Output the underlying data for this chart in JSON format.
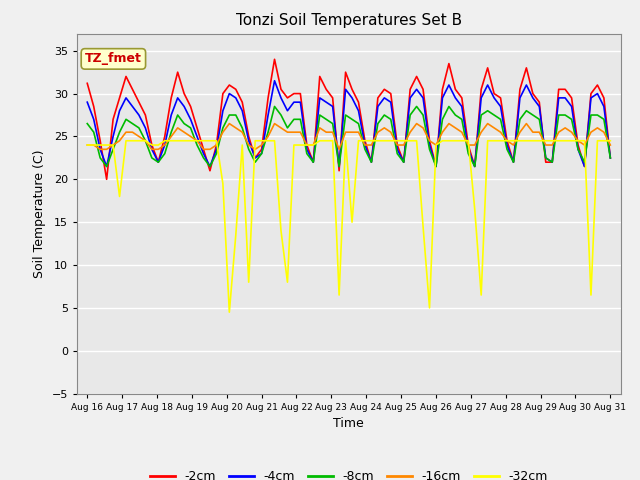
{
  "title": "Tonzi Soil Temperatures Set B",
  "xlabel": "Time",
  "ylabel": "Soil Temperature (C)",
  "ylim": [
    -5,
    37
  ],
  "annotation_text": "TZ_fmet",
  "annotation_bg": "#ffffcc",
  "annotation_border": "#999933",
  "annotation_color": "#cc0000",
  "grid_color": "#ffffff",
  "bg_color": "#e8e8e8",
  "fig_bg_color": "#f0f0f0",
  "legend_labels": [
    "-2cm",
    "-4cm",
    "-8cm",
    "-16cm",
    "-32cm"
  ],
  "legend_colors": [
    "#ff0000",
    "#0000ff",
    "#00bb00",
    "#ff8800",
    "#ffff00"
  ],
  "line_width": 1.2,
  "tick_labels": [
    "Aug 16",
    "Aug 17",
    "Aug 18",
    "Aug 19",
    "Aug 20",
    "Aug 21",
    "Aug 22",
    "Aug 23",
    "Aug 24",
    "Aug 25",
    "Aug 26",
    "Aug 27",
    "Aug 28",
    "Aug 29",
    "Aug 30",
    "Aug 31"
  ],
  "series": {
    "d2cm": [
      31.2,
      28.5,
      24.5,
      20.0,
      27.0,
      29.5,
      32.0,
      30.5,
      29.0,
      27.5,
      24.0,
      22.0,
      25.0,
      29.5,
      32.5,
      30.0,
      28.5,
      26.0,
      23.5,
      21.0,
      24.0,
      30.0,
      31.0,
      30.5,
      29.0,
      25.0,
      22.5,
      23.5,
      29.5,
      34.0,
      30.5,
      29.5,
      30.0,
      30.0,
      24.0,
      22.0,
      32.0,
      30.5,
      29.5,
      21.0,
      32.5,
      30.5,
      29.0,
      24.5,
      22.0,
      29.5,
      30.5,
      30.0,
      24.0,
      22.0,
      30.5,
      32.0,
      30.5,
      24.5,
      21.5,
      30.5,
      33.5,
      30.5,
      29.5,
      24.0,
      21.5,
      30.5,
      33.0,
      30.0,
      29.5,
      24.5,
      22.0,
      30.5,
      33.0,
      30.0,
      29.0,
      22.0,
      22.0,
      30.5,
      30.5,
      29.5,
      24.0,
      21.5,
      30.0,
      31.0,
      29.5,
      22.5
    ],
    "d4cm": [
      29.0,
      27.0,
      23.5,
      21.5,
      25.0,
      28.0,
      29.5,
      28.5,
      27.5,
      26.0,
      23.5,
      22.0,
      24.0,
      27.5,
      29.5,
      28.5,
      27.0,
      25.0,
      23.0,
      21.5,
      23.5,
      28.0,
      30.0,
      29.5,
      28.0,
      24.5,
      22.5,
      23.0,
      27.5,
      31.5,
      29.5,
      28.0,
      29.0,
      29.0,
      23.5,
      22.0,
      29.5,
      29.0,
      28.5,
      21.5,
      30.5,
      29.5,
      28.0,
      24.0,
      22.0,
      28.5,
      29.5,
      29.0,
      23.5,
      22.0,
      29.5,
      30.5,
      29.5,
      24.0,
      21.5,
      29.5,
      31.0,
      29.5,
      28.5,
      23.5,
      21.5,
      29.5,
      31.0,
      29.5,
      28.5,
      24.0,
      22.0,
      29.5,
      31.0,
      29.5,
      28.5,
      22.5,
      22.0,
      29.5,
      29.5,
      28.5,
      23.5,
      21.5,
      29.5,
      30.0,
      28.5,
      22.5
    ],
    "d8cm": [
      26.5,
      25.5,
      22.5,
      21.5,
      23.5,
      25.5,
      27.0,
      26.5,
      26.0,
      24.5,
      22.5,
      22.0,
      23.0,
      25.5,
      27.5,
      26.5,
      26.0,
      24.0,
      22.5,
      21.5,
      23.0,
      26.0,
      27.5,
      27.5,
      26.0,
      23.5,
      22.0,
      23.0,
      25.5,
      28.5,
      27.5,
      26.0,
      27.0,
      27.0,
      23.0,
      22.0,
      27.5,
      27.0,
      26.5,
      21.5,
      27.5,
      27.0,
      26.5,
      23.5,
      22.0,
      26.5,
      27.5,
      27.0,
      23.0,
      22.0,
      27.5,
      28.5,
      27.5,
      23.5,
      21.5,
      27.0,
      28.5,
      27.5,
      27.0,
      23.0,
      21.5,
      27.5,
      28.0,
      27.5,
      27.0,
      23.5,
      22.0,
      27.0,
      28.0,
      27.5,
      27.0,
      22.5,
      22.0,
      27.5,
      27.5,
      27.0,
      23.5,
      22.0,
      27.5,
      27.5,
      27.0,
      22.5
    ],
    "d16cm": [
      24.0,
      24.0,
      23.5,
      23.5,
      24.0,
      24.5,
      25.5,
      25.5,
      25.0,
      24.5,
      23.5,
      23.5,
      24.0,
      25.0,
      26.0,
      25.5,
      25.0,
      24.5,
      23.5,
      23.5,
      24.0,
      25.5,
      26.5,
      26.0,
      25.5,
      24.0,
      23.5,
      24.0,
      25.0,
      26.5,
      26.0,
      25.5,
      25.5,
      25.5,
      24.0,
      24.0,
      26.0,
      25.5,
      25.5,
      23.5,
      25.5,
      25.5,
      25.5,
      24.0,
      24.0,
      25.5,
      26.0,
      25.5,
      24.0,
      24.0,
      25.5,
      26.5,
      26.0,
      24.5,
      24.0,
      25.5,
      26.5,
      26.0,
      25.5,
      24.0,
      24.0,
      25.5,
      26.5,
      26.0,
      25.5,
      24.5,
      24.0,
      25.5,
      26.5,
      25.5,
      25.5,
      24.0,
      24.0,
      25.5,
      26.0,
      25.5,
      24.5,
      24.0,
      25.5,
      26.0,
      25.5,
      24.0
    ],
    "d32cm": [
      24.0,
      24.0,
      24.0,
      24.0,
      24.0,
      18.0,
      24.5,
      24.5,
      24.5,
      24.5,
      24.0,
      24.0,
      24.5,
      24.5,
      24.5,
      24.5,
      24.5,
      24.5,
      24.5,
      24.5,
      24.5,
      19.5,
      4.5,
      13.5,
      24.0,
      8.0,
      24.5,
      24.5,
      24.5,
      24.5,
      14.0,
      8.0,
      24.0,
      24.0,
      24.0,
      24.0,
      24.5,
      24.5,
      24.5,
      6.5,
      24.5,
      15.0,
      24.5,
      24.5,
      24.5,
      24.5,
      24.5,
      24.5,
      24.5,
      24.5,
      24.5,
      24.5,
      14.5,
      5.0,
      24.0,
      24.5,
      24.5,
      24.5,
      24.5,
      24.5,
      16.5,
      6.5,
      24.5,
      24.5,
      24.5,
      24.5,
      24.5,
      24.5,
      24.5,
      24.5,
      24.5,
      24.5,
      24.5,
      24.5,
      24.5,
      24.5,
      24.5,
      24.5,
      6.5,
      24.5,
      24.5,
      24.5
    ]
  }
}
